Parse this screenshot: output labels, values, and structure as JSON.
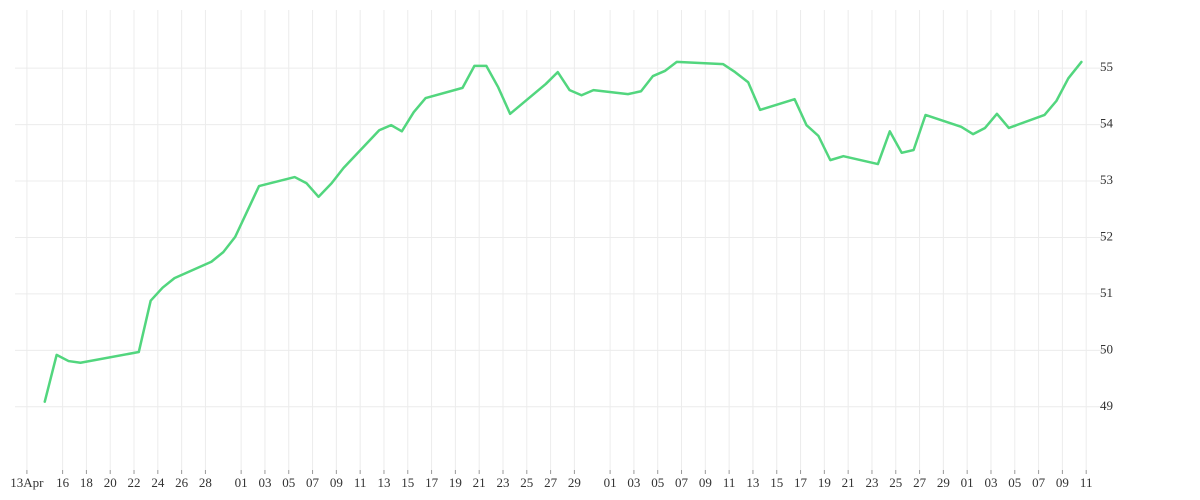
{
  "chart_data": {
    "type": "line",
    "color": "#52d67e",
    "grid": true,
    "x": [
      1.5,
      2.5,
      3.5,
      4.5,
      9.4,
      10.4,
      11.4,
      12.4,
      15.5,
      16.5,
      17.5,
      19.5,
      22.5,
      23.5,
      24.5,
      25.6,
      26.6,
      29.6,
      30.6,
      31.5,
      32.5,
      33.5,
      36.6,
      37.6,
      38.6,
      39.6,
      40.6,
      43.6,
      44.6,
      45.6,
      46.6,
      47.6,
      50.5,
      51.6,
      52.6,
      53.6,
      54.6,
      58.5,
      59.5,
      60.6,
      61.6,
      64.5,
      65.5,
      66.5,
      67.5,
      68.6,
      71.5,
      72.5,
      73.5,
      74.5,
      75.5,
      78.5,
      79.5,
      80.5,
      81.5,
      82.5,
      85.5,
      86.5,
      87.5,
      88.6
    ],
    "values": [
      49.09,
      49.92,
      49.81,
      49.78,
      49.97,
      50.88,
      51.11,
      51.28,
      51.57,
      51.74,
      52.01,
      52.91,
      53.07,
      52.96,
      52.72,
      52.96,
      53.23,
      53.9,
      53.99,
      53.88,
      54.22,
      54.47,
      54.65,
      55.04,
      55.04,
      54.66,
      54.19,
      54.72,
      54.93,
      54.61,
      54.52,
      54.61,
      54.54,
      54.59,
      54.86,
      54.95,
      55.11,
      55.07,
      54.93,
      54.75,
      54.26,
      54.45,
      53.99,
      53.8,
      53.37,
      53.44,
      53.3,
      53.88,
      53.5,
      53.55,
      54.17,
      53.96,
      53.83,
      53.94,
      54.19,
      53.94,
      54.17,
      54.42,
      54.82,
      55.11
    ],
    "xlim": [
      -1,
      91
    ],
    "ylim": [
      47.88,
      56.03
    ],
    "xticks": [
      {
        "value": 0,
        "label": "13Apr"
      },
      {
        "value": 3,
        "label": "16"
      },
      {
        "value": 5,
        "label": "18"
      },
      {
        "value": 7,
        "label": "20"
      },
      {
        "value": 9,
        "label": "22"
      },
      {
        "value": 11,
        "label": "24"
      },
      {
        "value": 13,
        "label": "26"
      },
      {
        "value": 15,
        "label": "28"
      },
      {
        "value": 18,
        "label": "01"
      },
      {
        "value": 20,
        "label": "03"
      },
      {
        "value": 22,
        "label": "05"
      },
      {
        "value": 24,
        "label": "07"
      },
      {
        "value": 26,
        "label": "09"
      },
      {
        "value": 28,
        "label": "11"
      },
      {
        "value": 30,
        "label": "13"
      },
      {
        "value": 32,
        "label": "15"
      },
      {
        "value": 34,
        "label": "17"
      },
      {
        "value": 36,
        "label": "19"
      },
      {
        "value": 38,
        "label": "21"
      },
      {
        "value": 40,
        "label": "23"
      },
      {
        "value": 42,
        "label": "25"
      },
      {
        "value": 44,
        "label": "27"
      },
      {
        "value": 46,
        "label": "29"
      },
      {
        "value": 49,
        "label": "01"
      },
      {
        "value": 51,
        "label": "03"
      },
      {
        "value": 53,
        "label": "05"
      },
      {
        "value": 55,
        "label": "07"
      },
      {
        "value": 57,
        "label": "09"
      },
      {
        "value": 59,
        "label": "11"
      },
      {
        "value": 61,
        "label": "13"
      },
      {
        "value": 63,
        "label": "15"
      },
      {
        "value": 65,
        "label": "17"
      },
      {
        "value": 67,
        "label": "19"
      },
      {
        "value": 69,
        "label": "21"
      },
      {
        "value": 71,
        "label": "23"
      },
      {
        "value": 73,
        "label": "25"
      },
      {
        "value": 75,
        "label": "27"
      },
      {
        "value": 77,
        "label": "29"
      },
      {
        "value": 79,
        "label": "01"
      },
      {
        "value": 81,
        "label": "03"
      },
      {
        "value": 83,
        "label": "05"
      },
      {
        "value": 85,
        "label": "07"
      },
      {
        "value": 87,
        "label": "09"
      },
      {
        "value": 89,
        "label": "11"
      }
    ],
    "yticks": [
      49,
      50,
      51,
      52,
      53,
      54,
      55
    ]
  }
}
